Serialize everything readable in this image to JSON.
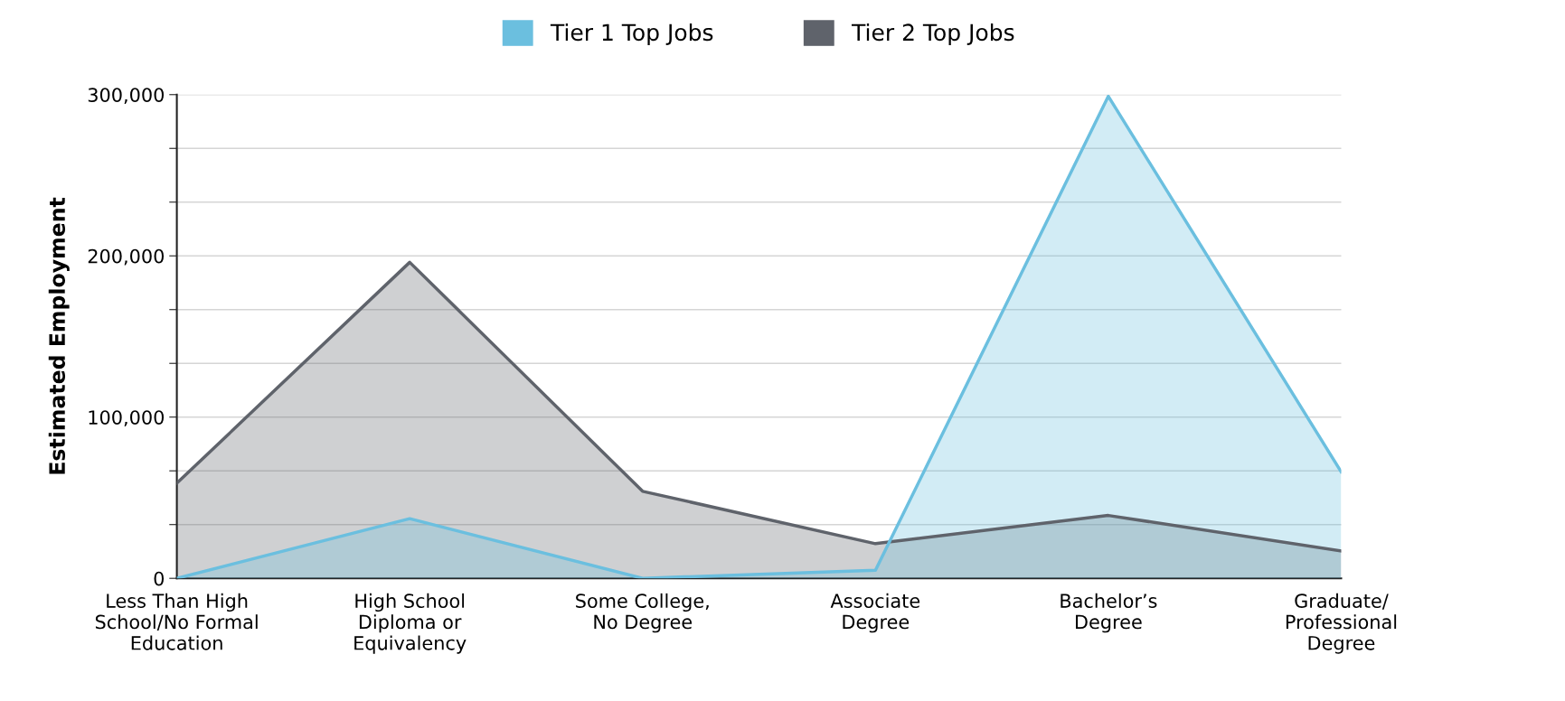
{
  "chart_data": {
    "type": "area",
    "ylabel": "Estimated Employment",
    "categories": [
      "Less Than High\nSchool/No Formal\nEducation",
      "High School\nDiploma or\nEquivalency",
      "Some College,\nNo Degree",
      "Associate\nDegree",
      "Bachelor’s\nDegree",
      "Graduate/\nProfessional\nDegree"
    ],
    "series": [
      {
        "name": "Tier 2 Top Jobs",
        "color": "#5f636b",
        "values": [
          59000,
          196000,
          54000,
          21500,
          39000,
          17000
        ]
      },
      {
        "name": "Tier 1 Top Jobs",
        "color": "#6bbfdf",
        "values": [
          0,
          37000,
          0,
          5000,
          299000,
          66000
        ]
      }
    ],
    "ylim": [
      0,
      300000
    ],
    "yticks": [
      {
        "value": 0,
        "label": "0"
      },
      {
        "value": 33333,
        "label": null
      },
      {
        "value": 66667,
        "label": null
      },
      {
        "value": 100000,
        "label": "100,000"
      },
      {
        "value": 133333,
        "label": null
      },
      {
        "value": 166667,
        "label": null
      },
      {
        "value": 200000,
        "label": "200,000"
      },
      {
        "value": 233333,
        "label": null
      },
      {
        "value": 266667,
        "label": null
      },
      {
        "value": 300000,
        "label": "300,000"
      }
    ],
    "grid": "y",
    "legend": "top",
    "marker": "none",
    "line_style": "solid"
  }
}
